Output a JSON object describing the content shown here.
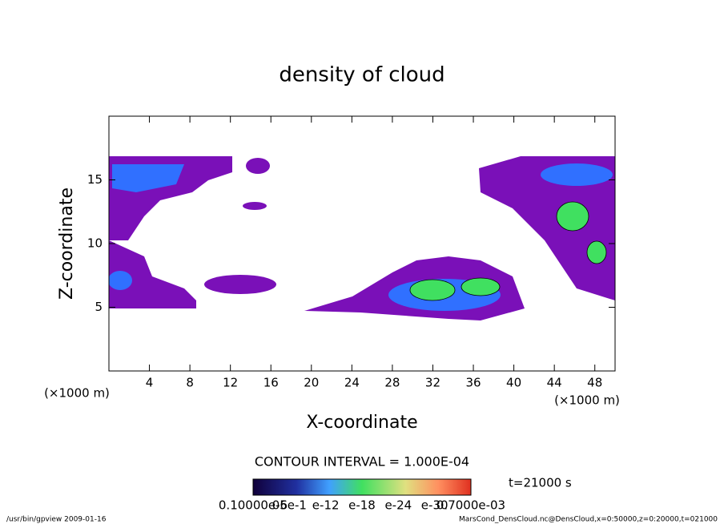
{
  "chart_data": {
    "type": "contour",
    "title": "density of cloud",
    "xlabel": "X-coordinate",
    "ylabel": "Z-coordinate",
    "xunit": "(×1000 m)",
    "yunit": "(×1000 m)",
    "xlim": [
      0,
      50
    ],
    "xticks": [
      4,
      8,
      12,
      16,
      20,
      24,
      28,
      32,
      36,
      40,
      44,
      48
    ],
    "ylim": [
      0,
      20
    ],
    "yticks": [
      5,
      10,
      15
    ],
    "contour_interval": "CONTOUR INTERVAL = 1.000E-04",
    "time": "t=21000 s",
    "colorbar_labels": [
      "0.10000e-6",
      "05e-1",
      "e-12",
      "e-18",
      "e-24",
      "e-30",
      "0.7000e-03"
    ],
    "footer_left": "/usr/bin/gpview   2009-01-16",
    "footer_right": "MarsCond_DensCloud.nc@DensCloud,x=0:50000,z=0:20000,t=021000"
  }
}
